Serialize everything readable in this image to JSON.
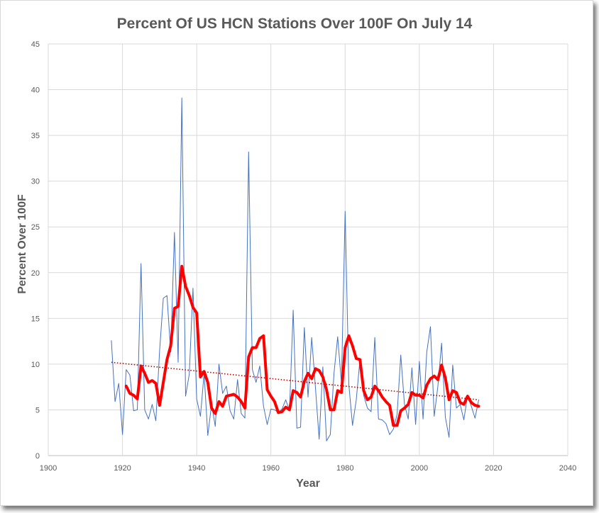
{
  "chart_data": {
    "type": "line",
    "title": "Percent Of US HCN Stations Over 100F On July 14",
    "xlabel": "Year",
    "ylabel": "Percent Over 100F",
    "xlim": [
      1900,
      2040
    ],
    "ylim": [
      0,
      45
    ],
    "x_ticks": [
      "1900",
      "1920",
      "1940",
      "1960",
      "1980",
      "2000",
      "2020",
      "2040"
    ],
    "y_ticks": [
      "0",
      "5",
      "10",
      "15",
      "20",
      "25",
      "30",
      "35",
      "40",
      "45"
    ],
    "grid": true,
    "legend": "none",
    "series": [
      {
        "kind": "annual",
        "color": "#4472c4",
        "x": [
          1917,
          1918,
          1919,
          1920,
          1921,
          1922,
          1923,
          1924,
          1925,
          1926,
          1927,
          1928,
          1929,
          1930,
          1931,
          1932,
          1933,
          1934,
          1935,
          1936,
          1937,
          1938,
          1939,
          1940,
          1941,
          1942,
          1943,
          1944,
          1945,
          1946,
          1947,
          1948,
          1949,
          1950,
          1951,
          1952,
          1953,
          1954,
          1955,
          1956,
          1957,
          1958,
          1959,
          1960,
          1961,
          1962,
          1963,
          1964,
          1965,
          1966,
          1967,
          1968,
          1969,
          1970,
          1971,
          1972,
          1973,
          1974,
          1975,
          1976,
          1977,
          1978,
          1979,
          1980,
          1981,
          1982,
          1983,
          1984,
          1985,
          1986,
          1987,
          1988,
          1989,
          1990,
          1991,
          1992,
          1993,
          1994,
          1995,
          1996,
          1997,
          1998,
          1999,
          2000,
          2001,
          2002,
          2003,
          2004,
          2005,
          2006,
          2007,
          2008,
          2009,
          2010,
          2011,
          2012,
          2013,
          2014,
          2015,
          2016
        ],
        "y": [
          12.6,
          5.9,
          7.9,
          2.3,
          9.4,
          8.8,
          4.9,
          5.0,
          21.0,
          5.0,
          4.0,
          5.6,
          3.8,
          11.5,
          17.2,
          17.5,
          11.3,
          24.4,
          10.2,
          39.1,
          6.5,
          8.9,
          18.3,
          6.2,
          4.3,
          9.0,
          2.2,
          5.6,
          3.2,
          10.0,
          6.8,
          7.6,
          4.9,
          4.0,
          8.3,
          4.6,
          4.1,
          33.2,
          9.4,
          8.0,
          9.8,
          5.4,
          3.4,
          5.1,
          5.0,
          4.7,
          5.1,
          6.1,
          4.9,
          15.9,
          3.0,
          3.1,
          14.0,
          6.4,
          12.9,
          7.4,
          1.8,
          9.7,
          1.6,
          2.3,
          9.0,
          13.0,
          7.9,
          26.7,
          7.8,
          3.3,
          6.1,
          10.5,
          6.6,
          5.2,
          4.8,
          12.9,
          4.0,
          3.9,
          3.5,
          2.3,
          2.9,
          4.5,
          11.0,
          5.6,
          4.0,
          9.6,
          3.4,
          10.3,
          4.0,
          11.3,
          14.1,
          4.3,
          7.6,
          12.3,
          4.2,
          2.0,
          9.9,
          5.2,
          5.6,
          3.9,
          6.6,
          5.4,
          4.1,
          6.1
        ]
      },
      {
        "kind": "smoothed",
        "color": "#ff0000",
        "x": [
          1921,
          1922,
          1923,
          1924,
          1925,
          1926,
          1927,
          1928,
          1929,
          1930,
          1931,
          1932,
          1933,
          1934,
          1935,
          1936,
          1937,
          1938,
          1939,
          1940,
          1941,
          1942,
          1943,
          1944,
          1945,
          1946,
          1947,
          1948,
          1949,
          1950,
          1951,
          1952,
          1953,
          1954,
          1955,
          1956,
          1957,
          1958,
          1959,
          1960,
          1961,
          1962,
          1963,
          1964,
          1965,
          1966,
          1967,
          1968,
          1969,
          1970,
          1971,
          1972,
          1973,
          1974,
          1975,
          1976,
          1977,
          1978,
          1979,
          1980,
          1981,
          1982,
          1983,
          1984,
          1985,
          1986,
          1987,
          1988,
          1989,
          1990,
          1991,
          1992,
          1993,
          1994,
          1995,
          1996,
          1997,
          1998,
          1999,
          2000,
          2001,
          2002,
          2003,
          2004,
          2005,
          2006,
          2007,
          2008,
          2009,
          2010,
          2011,
          2012,
          2013,
          2014,
          2015,
          2016
        ],
        "y": [
          7.6,
          6.8,
          6.6,
          6.2,
          9.8,
          9.0,
          8.0,
          8.2,
          7.9,
          5.5,
          8.0,
          10.5,
          12.0,
          16.1,
          16.3,
          20.7,
          18.5,
          17.5,
          16.2,
          15.6,
          8.6,
          9.2,
          8.0,
          5.2,
          4.6,
          5.9,
          5.4,
          6.5,
          6.6,
          6.7,
          6.4,
          5.9,
          5.2,
          10.8,
          11.8,
          11.8,
          12.8,
          13.1,
          7.2,
          6.5,
          5.9,
          4.7,
          4.8,
          5.3,
          5.0,
          7.1,
          6.9,
          6.4,
          8.1,
          9.0,
          8.4,
          9.5,
          9.3,
          8.6,
          7.2,
          5.0,
          5.0,
          7.1,
          6.9,
          11.8,
          13.1,
          12.0,
          10.6,
          10.5,
          7.1,
          6.1,
          6.4,
          7.6,
          7.1,
          6.4,
          5.9,
          5.5,
          3.3,
          3.3,
          4.9,
          5.2,
          5.6,
          6.9,
          6.6,
          6.6,
          6.3,
          7.7,
          8.4,
          8.7,
          8.3,
          9.9,
          8.5,
          6.1,
          7.1,
          6.9,
          5.8,
          5.6,
          6.5,
          5.8,
          5.5,
          5.4
        ]
      },
      {
        "kind": "trend",
        "color": "#c00000",
        "x": [
          1917,
          2016
        ],
        "y": [
          10.2,
          6.1
        ]
      }
    ]
  }
}
